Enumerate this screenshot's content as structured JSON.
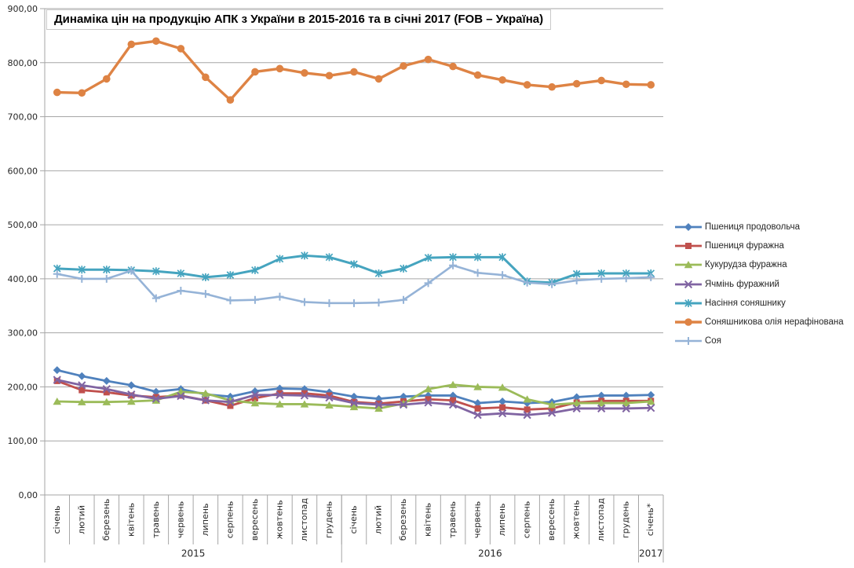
{
  "chart_data": {
    "type": "line",
    "title": "Динаміка цін на продукцію АПК з України в 2015-2016 та в січні 2017 (FOB – Україна)",
    "xlabel": "",
    "ylabel": "",
    "ylim": [
      0,
      900
    ],
    "grid": true,
    "legend_position": "right",
    "y_ticks": [
      {
        "value": 0,
        "label": "0,00"
      },
      {
        "value": 100,
        "label": "100,00"
      },
      {
        "value": 200,
        "label": "200,00"
      },
      {
        "value": 300,
        "label": "300,00"
      },
      {
        "value": 400,
        "label": "400,00"
      },
      {
        "value": 500,
        "label": "500,00"
      },
      {
        "value": 600,
        "label": "600,00"
      },
      {
        "value": 700,
        "label": "700,00"
      },
      {
        "value": 800,
        "label": "800,00"
      },
      {
        "value": 900,
        "label": "900,00"
      }
    ],
    "x_categories": [
      "січень",
      "лютий",
      "березень",
      "квітень",
      "травень",
      "червень",
      "липень",
      "серпень",
      "вересень",
      "жовтень",
      "листопад",
      "грудень",
      "січень",
      "лютий",
      "березень",
      "квітень",
      "травень",
      "червень",
      "липень",
      "серпень",
      "вересень",
      "жовтень",
      "листопад",
      "грудень",
      "січень*"
    ],
    "year_groups": [
      {
        "label": "2015",
        "span": 12
      },
      {
        "label": "2016",
        "span": 12
      },
      {
        "label": "2017",
        "span": 1
      }
    ],
    "series": [
      {
        "name": "Пшениця  продовольча",
        "color": "#4F81BD",
        "marker": "diamond",
        "line_width": 2.8,
        "values": [
          231,
          220,
          211,
          203,
          191,
          196,
          186,
          182,
          192,
          197,
          196,
          190,
          182,
          178,
          182,
          184,
          184,
          170,
          173,
          170,
          172,
          181,
          184,
          184,
          185
        ]
      },
      {
        "name": "Пшениця  фуражна",
        "color": "#C0504D",
        "marker": "square",
        "line_width": 2.8,
        "values": [
          211,
          194,
          190,
          184,
          181,
          184,
          175,
          165,
          179,
          188,
          188,
          184,
          172,
          169,
          173,
          177,
          175,
          160,
          162,
          158,
          160,
          171,
          174,
          174,
          174
        ]
      },
      {
        "name": "Кукурудза фуражна",
        "color": "#9BBB59",
        "marker": "triangle",
        "line_width": 2.8,
        "values": [
          173,
          172,
          172,
          173,
          175,
          191,
          188,
          175,
          170,
          168,
          168,
          166,
          163,
          160,
          169,
          196,
          204,
          200,
          199,
          177,
          167,
          170,
          170,
          170,
          173
        ]
      },
      {
        "name": "Ячмінь фуражний",
        "color": "#8064A2",
        "marker": "x",
        "line_width": 2.8,
        "values": [
          213,
          203,
          196,
          186,
          178,
          183,
          175,
          172,
          185,
          185,
          184,
          180,
          170,
          167,
          167,
          171,
          167,
          148,
          151,
          148,
          152,
          160,
          160,
          160,
          161
        ]
      },
      {
        "name": "Насіння соняшнику",
        "color": "#45A4BF",
        "marker": "star",
        "line_width": 3,
        "values": [
          419,
          417,
          417,
          416,
          414,
          410,
          403,
          407,
          416,
          437,
          443,
          440,
          427,
          410,
          419,
          439,
          440,
          440,
          440,
          395,
          393,
          409,
          410,
          410,
          410
        ]
      },
      {
        "name": "Соняшникова  олія нерафінована",
        "color": "#DE8344",
        "marker": "circle",
        "line_width": 3.4,
        "values": [
          745,
          744,
          770,
          834,
          840,
          826,
          773,
          731,
          783,
          789,
          781,
          776,
          783,
          770,
          794,
          806,
          793,
          777,
          768,
          759,
          755,
          761,
          767,
          760,
          759
        ]
      },
      {
        "name": "Соя",
        "color": "#95B3D7",
        "marker": "plus",
        "line_width": 2.6,
        "values": [
          409,
          400,
          400,
          415,
          364,
          378,
          372,
          360,
          361,
          367,
          357,
          355,
          355,
          356,
          361,
          392,
          425,
          411,
          407,
          393,
          390,
          397,
          400,
          401,
          403
        ]
      }
    ]
  }
}
